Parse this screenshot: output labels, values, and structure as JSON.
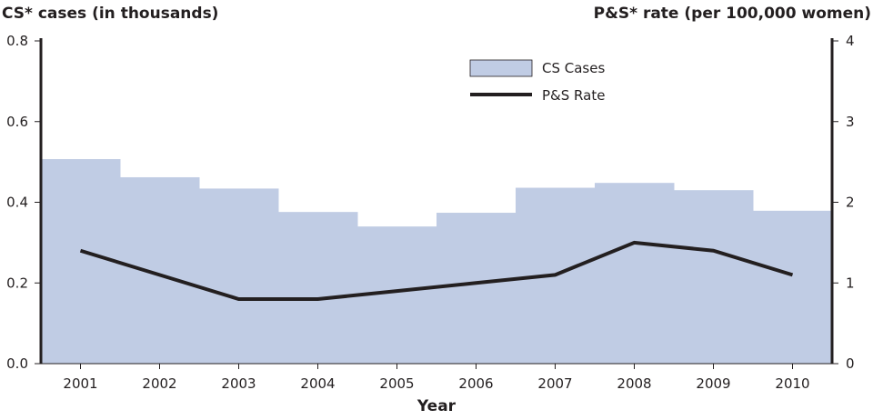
{
  "chart_data": {
    "type": "bar+line",
    "categories": [
      "2001",
      "2002",
      "2003",
      "2004",
      "2005",
      "2006",
      "2007",
      "2008",
      "2009",
      "2010"
    ],
    "xlabel": "Year",
    "ylabel_left": "CS* cases (in thousands)",
    "ylabel_right": "P&S* rate (per 100,000 women)",
    "ylim_left": [
      0,
      0.8
    ],
    "ylim_right": [
      0,
      4
    ],
    "yticks_left": [
      "0.0",
      "0.2",
      "0.4",
      "0.6",
      "0.8"
    ],
    "yticks_right": [
      "0",
      "1",
      "2",
      "3",
      "4"
    ],
    "grid": false,
    "legend_placement": "top-center",
    "series": [
      {
        "name": "CS Cases",
        "type": "bar",
        "axis": "left",
        "color": "#c0cce4",
        "values": [
          0.507,
          0.462,
          0.434,
          0.376,
          0.34,
          0.374,
          0.436,
          0.448,
          0.43,
          0.379
        ]
      },
      {
        "name": "P&S Rate",
        "type": "line",
        "axis": "right",
        "color": "#231f20",
        "values": [
          1.4,
          1.1,
          0.8,
          0.8,
          0.9,
          1.0,
          1.1,
          1.5,
          1.4,
          1.1
        ]
      }
    ]
  }
}
